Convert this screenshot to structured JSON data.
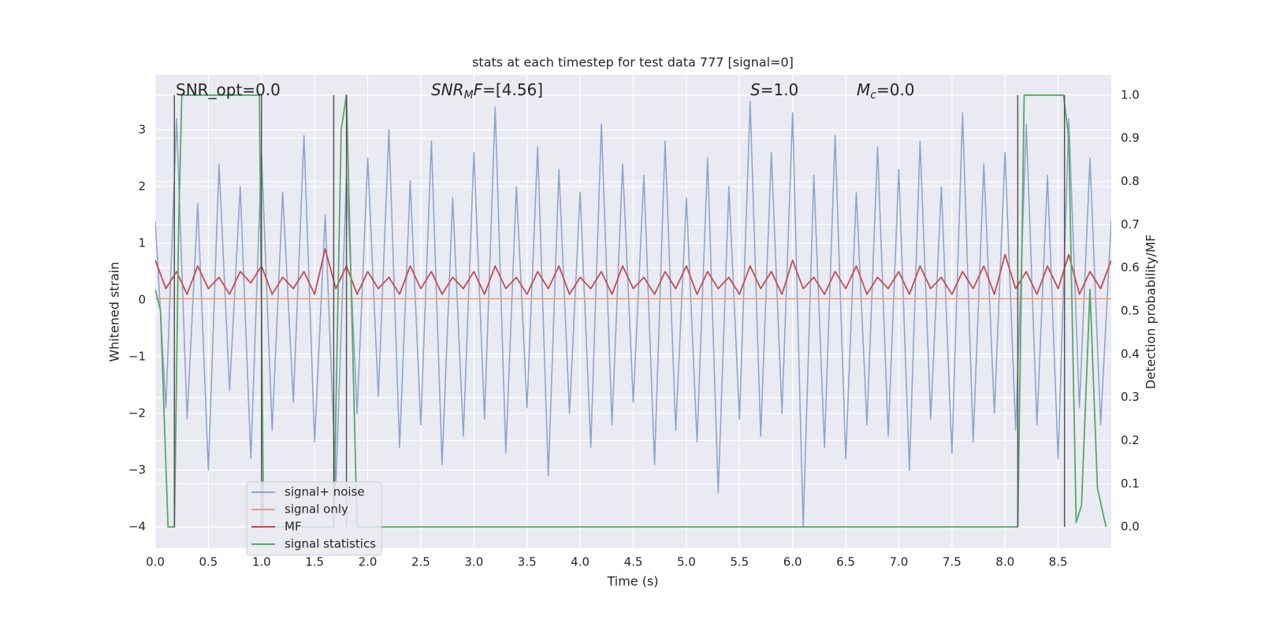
{
  "chart_data": {
    "type": "line",
    "title": "stats at each timestep for test data 777 [signal=0]",
    "xlabel": "Time (s)",
    "ylabel": "Whitened strain",
    "y2label": "Detection probability/MF",
    "xlim": [
      0,
      9.0
    ],
    "ylim": [
      -4.375,
      3.97
    ],
    "y2lim": [
      -0.049,
      1.047
    ],
    "xticks": [
      {
        "value": 0,
        "label": "0.0"
      },
      0.5,
      {
        "value": 1,
        "label": "1.0"
      },
      1.5,
      {
        "value": 2,
        "label": "2.0"
      },
      2.5,
      {
        "value": 3,
        "label": "3.0"
      },
      3.5,
      {
        "value": 4,
        "label": "4.0"
      },
      4.5,
      {
        "value": 5,
        "label": "5.0"
      },
      5.5,
      {
        "value": 6,
        "label": "6.0"
      },
      6.5,
      {
        "value": 7,
        "label": "7.0"
      },
      7.5,
      {
        "value": 8,
        "label": "8.0"
      },
      8.5
    ],
    "yticks": [
      {
        "value": -4,
        "label": "−4"
      },
      {
        "value": -3,
        "label": "−3"
      },
      {
        "value": -2,
        "label": "−2"
      },
      {
        "value": -1,
        "label": "−1"
      },
      0,
      1,
      2,
      3
    ],
    "y2ticks": [
      {
        "value": 0,
        "label": "0.0"
      },
      0.1,
      0.2,
      0.3,
      0.4,
      0.5,
      0.6,
      0.7,
      0.8,
      0.9,
      {
        "value": 1,
        "label": "1.0"
      }
    ],
    "grid": true,
    "legend": "lower left",
    "annotations": [
      [
        {
          "text": "SNR_opt=0.0"
        }
      ],
      [
        {
          "text": "SNR",
          "italic": true
        },
        {
          "text": "M",
          "italic": true,
          "sub": true
        },
        {
          "text": "F",
          "italic": true
        },
        {
          "text": "=[4.56]"
        }
      ],
      [
        {
          "text": "S",
          "italic": true
        },
        {
          "text": "=1.0"
        }
      ],
      [
        {
          "text": "M",
          "italic": true
        },
        {
          "text": "c",
          "italic": true,
          "sub": true
        },
        {
          "text": "=0.0"
        }
      ]
    ],
    "series": [
      {
        "name": "signal+ noise",
        "color": "#8fa5cf",
        "axis": "y",
        "x": [
          0,
          0.1,
          0.2,
          0.3,
          0.4,
          0.5,
          0.6,
          0.7,
          0.8,
          0.9,
          1.0,
          1.1,
          1.2,
          1.3,
          1.4,
          1.5,
          1.6,
          1.7,
          1.8,
          1.9,
          2.0,
          2.1,
          2.2,
          2.3,
          2.4,
          2.5,
          2.6,
          2.7,
          2.8,
          2.9,
          3.0,
          3.1,
          3.2,
          3.3,
          3.4,
          3.5,
          3.6,
          3.7,
          3.8,
          3.9,
          4.0,
          4.1,
          4.2,
          4.3,
          4.4,
          4.5,
          4.6,
          4.7,
          4.8,
          4.9,
          5.0,
          5.1,
          5.2,
          5.3,
          5.4,
          5.5,
          5.6,
          5.7,
          5.8,
          5.9,
          6.0,
          6.1,
          6.2,
          6.3,
          6.4,
          6.5,
          6.6,
          6.7,
          6.8,
          6.9,
          7.0,
          7.1,
          7.2,
          7.3,
          7.4,
          7.5,
          7.6,
          7.7,
          7.8,
          7.9,
          8.0,
          8.1,
          8.2,
          8.3,
          8.4,
          8.5,
          8.6,
          8.7,
          8.8,
          8.9,
          9.0
        ],
        "values": [
          1.4,
          -1.9,
          3.2,
          -2.1,
          1.7,
          -3.0,
          2.4,
          -1.6,
          2.0,
          -2.8,
          2.6,
          -2.3,
          1.9,
          -1.8,
          2.9,
          -2.5,
          1.5,
          -3.3,
          2.2,
          -2.0,
          2.5,
          -1.7,
          3.0,
          -2.6,
          2.1,
          -2.2,
          2.8,
          -2.9,
          1.8,
          -2.4,
          2.6,
          -2.1,
          3.4,
          -2.7,
          2.0,
          -1.9,
          2.7,
          -3.1,
          2.3,
          -2.0,
          1.9,
          -2.6,
          3.1,
          -2.2,
          2.4,
          -1.8,
          2.2,
          -2.9,
          2.8,
          -2.3,
          1.8,
          -2.5,
          2.5,
          -3.4,
          2.0,
          -2.1,
          3.5,
          -2.4,
          2.6,
          -2.0,
          3.3,
          -4.0,
          2.2,
          -2.6,
          2.9,
          -2.8,
          1.9,
          -2.2,
          2.7,
          -2.4,
          2.3,
          -3.0,
          2.8,
          -2.1,
          2.0,
          -2.7,
          3.3,
          -2.5,
          2.4,
          -2.0,
          2.6,
          -2.3,
          3.1,
          -2.2,
          2.2,
          -2.8,
          3.2,
          -1.9,
          2.5,
          -2.2,
          1.4
        ]
      },
      {
        "name": "signal only",
        "color": "#e0a088",
        "axis": "y",
        "x": [
          0,
          9.0
        ],
        "values": [
          0.02,
          0.02
        ]
      },
      {
        "name": "MF",
        "color": "#c44e52",
        "axis": "y",
        "x": [
          0,
          0.1,
          0.2,
          0.3,
          0.4,
          0.5,
          0.6,
          0.7,
          0.8,
          0.9,
          1.0,
          1.1,
          1.2,
          1.3,
          1.4,
          1.5,
          1.6,
          1.7,
          1.8,
          1.9,
          2.0,
          2.1,
          2.2,
          2.3,
          2.4,
          2.5,
          2.6,
          2.7,
          2.8,
          2.9,
          3.0,
          3.1,
          3.2,
          3.3,
          3.4,
          3.5,
          3.6,
          3.7,
          3.8,
          3.9,
          4.0,
          4.1,
          4.2,
          4.3,
          4.4,
          4.5,
          4.6,
          4.7,
          4.8,
          4.9,
          5.0,
          5.1,
          5.2,
          5.3,
          5.4,
          5.5,
          5.6,
          5.7,
          5.8,
          5.9,
          6.0,
          6.1,
          6.2,
          6.3,
          6.4,
          6.5,
          6.6,
          6.7,
          6.8,
          6.9,
          7.0,
          7.1,
          7.2,
          7.3,
          7.4,
          7.5,
          7.6,
          7.7,
          7.8,
          7.9,
          8.0,
          8.1,
          8.2,
          8.3,
          8.4,
          8.5,
          8.6,
          8.7,
          8.8,
          8.9,
          9.0
        ],
        "values": [
          0.7,
          0.2,
          0.5,
          0.1,
          0.6,
          0.2,
          0.4,
          0.1,
          0.5,
          0.3,
          0.6,
          0.1,
          0.4,
          0.2,
          0.5,
          0.1,
          0.9,
          0.2,
          0.6,
          0.1,
          0.5,
          0.2,
          0.4,
          0.1,
          0.6,
          0.2,
          0.5,
          0.1,
          0.4,
          0.2,
          0.5,
          0.1,
          0.6,
          0.2,
          0.4,
          0.1,
          0.5,
          0.2,
          0.6,
          0.1,
          0.4,
          0.2,
          0.5,
          0.1,
          0.6,
          0.2,
          0.4,
          0.1,
          0.5,
          0.2,
          0.6,
          0.1,
          0.5,
          0.2,
          0.4,
          0.1,
          0.6,
          0.2,
          0.5,
          0.1,
          0.7,
          0.2,
          0.4,
          0.1,
          0.5,
          0.2,
          0.6,
          0.1,
          0.4,
          0.2,
          0.5,
          0.1,
          0.6,
          0.2,
          0.4,
          0.1,
          0.5,
          0.2,
          0.6,
          0.1,
          0.8,
          0.2,
          0.5,
          0.1,
          0.6,
          0.2,
          0.8,
          0.1,
          0.5,
          0.2,
          0.7
        ]
      },
      {
        "name": "signal statistics",
        "color": "#55a868",
        "axis": "y2",
        "x": [
          0,
          0.05,
          0.12,
          0.18,
          0.22,
          0.25,
          0.98,
          1.02,
          1.68,
          1.75,
          1.8,
          1.9,
          8.12,
          8.18,
          8.22,
          8.55,
          8.6,
          8.67,
          8.72,
          8.8,
          8.87,
          8.95
        ],
        "values": [
          0.55,
          0.5,
          0.0,
          0.0,
          0.7,
          1.0,
          1.0,
          0.0,
          0.0,
          0.92,
          1.0,
          0.0,
          0.0,
          1.0,
          1.0,
          1.0,
          0.9,
          0.01,
          0.05,
          0.55,
          0.09,
          0.0
        ]
      }
    ],
    "vlines": {
      "x": [
        0.18,
        1.0,
        1.68,
        1.8,
        8.12,
        8.56
      ],
      "ymin": 0,
      "ymax": 1,
      "axis": "y2",
      "color": "#555555"
    }
  }
}
